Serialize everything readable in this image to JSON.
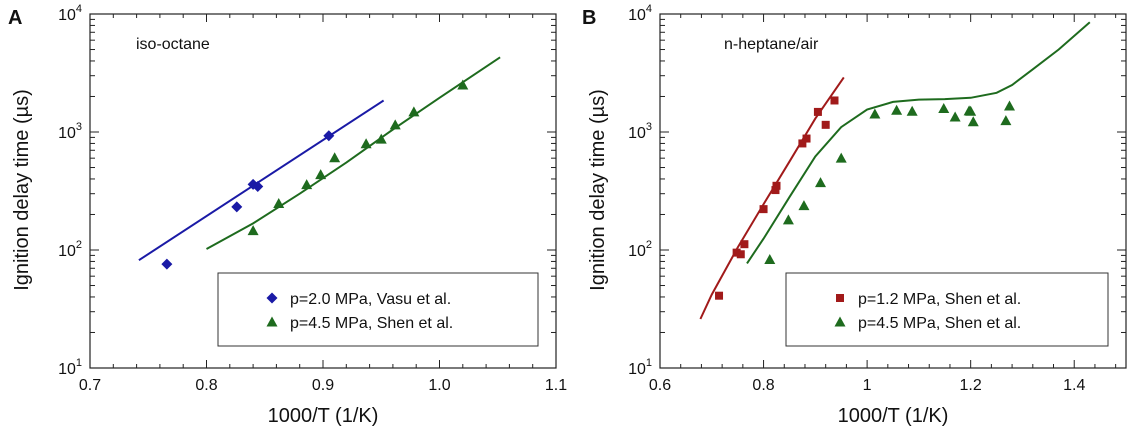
{
  "chart_data": [
    {
      "panel": "A",
      "type": "scatter",
      "annotation": "iso-octane",
      "xlabel": "1000/T (1/K)",
      "ylabel": "Ignition delay time (µs)",
      "yscale": "log",
      "xlim": [
        0.7,
        1.1
      ],
      "ylim": [
        10,
        10000
      ],
      "xticks": [
        0.7,
        0.8,
        0.9,
        1.0,
        1.1
      ],
      "xtick_labels": [
        "0.7",
        "0.8",
        "0.9",
        "1.0",
        "1.1"
      ],
      "yticks": [
        10,
        100,
        1000,
        10000
      ],
      "ytick_base": "10",
      "ytick_exponents": [
        "1",
        "2",
        "3",
        "4"
      ],
      "legend_position": "bottom-right",
      "series": [
        {
          "name": "p=2.0 MPa, Vasu et al.",
          "marker": "diamond",
          "color": "#1a1aa6",
          "points": [
            [
              0.766,
              76
            ],
            [
              0.826,
              232
            ],
            [
              0.84,
              360
            ],
            [
              0.844,
              345
            ],
            [
              0.905,
              930
            ]
          ],
          "model_line": [
            [
              0.742,
              82
            ],
            [
              0.952,
              1850
            ]
          ]
        },
        {
          "name": "p=4.5 MPa, Shen et al.",
          "marker": "triangle",
          "color": "#1e6b1e",
          "points": [
            [
              0.84,
              146
            ],
            [
              0.862,
              248
            ],
            [
              0.886,
              358
            ],
            [
              0.898,
              435
            ],
            [
              0.91,
              605
            ],
            [
              0.937,
              795
            ],
            [
              0.95,
              870
            ],
            [
              0.962,
              1150
            ],
            [
              0.978,
              1480
            ],
            [
              1.02,
              2500
            ]
          ],
          "model_line": [
            [
              0.8,
              102
            ],
            [
              0.84,
              168
            ],
            [
              0.88,
              300
            ],
            [
              0.92,
              550
            ],
            [
              0.96,
              1050
            ],
            [
              1.0,
              1950
            ],
            [
              1.052,
              4300
            ]
          ]
        }
      ]
    },
    {
      "panel": "B",
      "type": "scatter",
      "annotation": "n-heptane/air",
      "xlabel": "1000/T (1/K)",
      "ylabel": "Ignition delay time (µs)",
      "yscale": "log",
      "xlim": [
        0.6,
        1.5
      ],
      "ylim": [
        10,
        10000
      ],
      "xticks": [
        0.6,
        0.8,
        1.0,
        1.2,
        1.4
      ],
      "xtick_labels": [
        "0.6",
        "0.8",
        "1",
        "1.2",
        "1.4"
      ],
      "yticks": [
        10,
        100,
        1000,
        10000
      ],
      "ytick_base": "10",
      "ytick_exponents": [
        "1",
        "2",
        "3",
        "4"
      ],
      "legend_position": "bottom-right",
      "series": [
        {
          "name": "p=1.2 MPa, Shen et al.",
          "marker": "square",
          "color": "#a11a1a",
          "points": [
            [
              0.714,
              41
            ],
            [
              0.748,
              95
            ],
            [
              0.756,
              92
            ],
            [
              0.763,
              112
            ],
            [
              0.8,
              222
            ],
            [
              0.823,
              322
            ],
            [
              0.825,
              350
            ],
            [
              0.875,
              800
            ],
            [
              0.883,
              880
            ],
            [
              0.905,
              1480
            ],
            [
              0.92,
              1150
            ],
            [
              0.937,
              1850
            ]
          ],
          "model_line": [
            [
              0.678,
              26
            ],
            [
              0.7,
              42
            ],
            [
              0.75,
              105
            ],
            [
              0.8,
              245
            ],
            [
              0.85,
              560
            ],
            [
              0.9,
              1300
            ],
            [
              0.955,
              2900
            ]
          ]
        },
        {
          "name": "p=4.5 MPa, Shen et al.",
          "marker": "triangle",
          "color": "#1e6b1e",
          "points": [
            [
              0.812,
              83
            ],
            [
              0.848,
              180
            ],
            [
              0.878,
              238
            ],
            [
              0.91,
              372
            ],
            [
              0.95,
              600
            ],
            [
              1.015,
              1420
            ],
            [
              1.057,
              1530
            ],
            [
              1.087,
              1500
            ],
            [
              1.148,
              1580
            ],
            [
              1.17,
              1340
            ],
            [
              1.197,
              1510
            ],
            [
              1.2,
              1500
            ],
            [
              1.205,
              1220
            ],
            [
              1.268,
              1250
            ],
            [
              1.275,
              1660
            ]
          ],
          "model_line": [
            [
              0.768,
              77
            ],
            [
              0.8,
              125
            ],
            [
              0.85,
              280
            ],
            [
              0.9,
              620
            ],
            [
              0.95,
              1100
            ],
            [
              1.0,
              1550
            ],
            [
              1.05,
              1800
            ],
            [
              1.1,
              1880
            ],
            [
              1.15,
              1900
            ],
            [
              1.2,
              1950
            ],
            [
              1.25,
              2150
            ],
            [
              1.28,
              2500
            ],
            [
              1.32,
              3400
            ],
            [
              1.37,
              5000
            ],
            [
              1.43,
              8500
            ]
          ]
        }
      ]
    }
  ]
}
